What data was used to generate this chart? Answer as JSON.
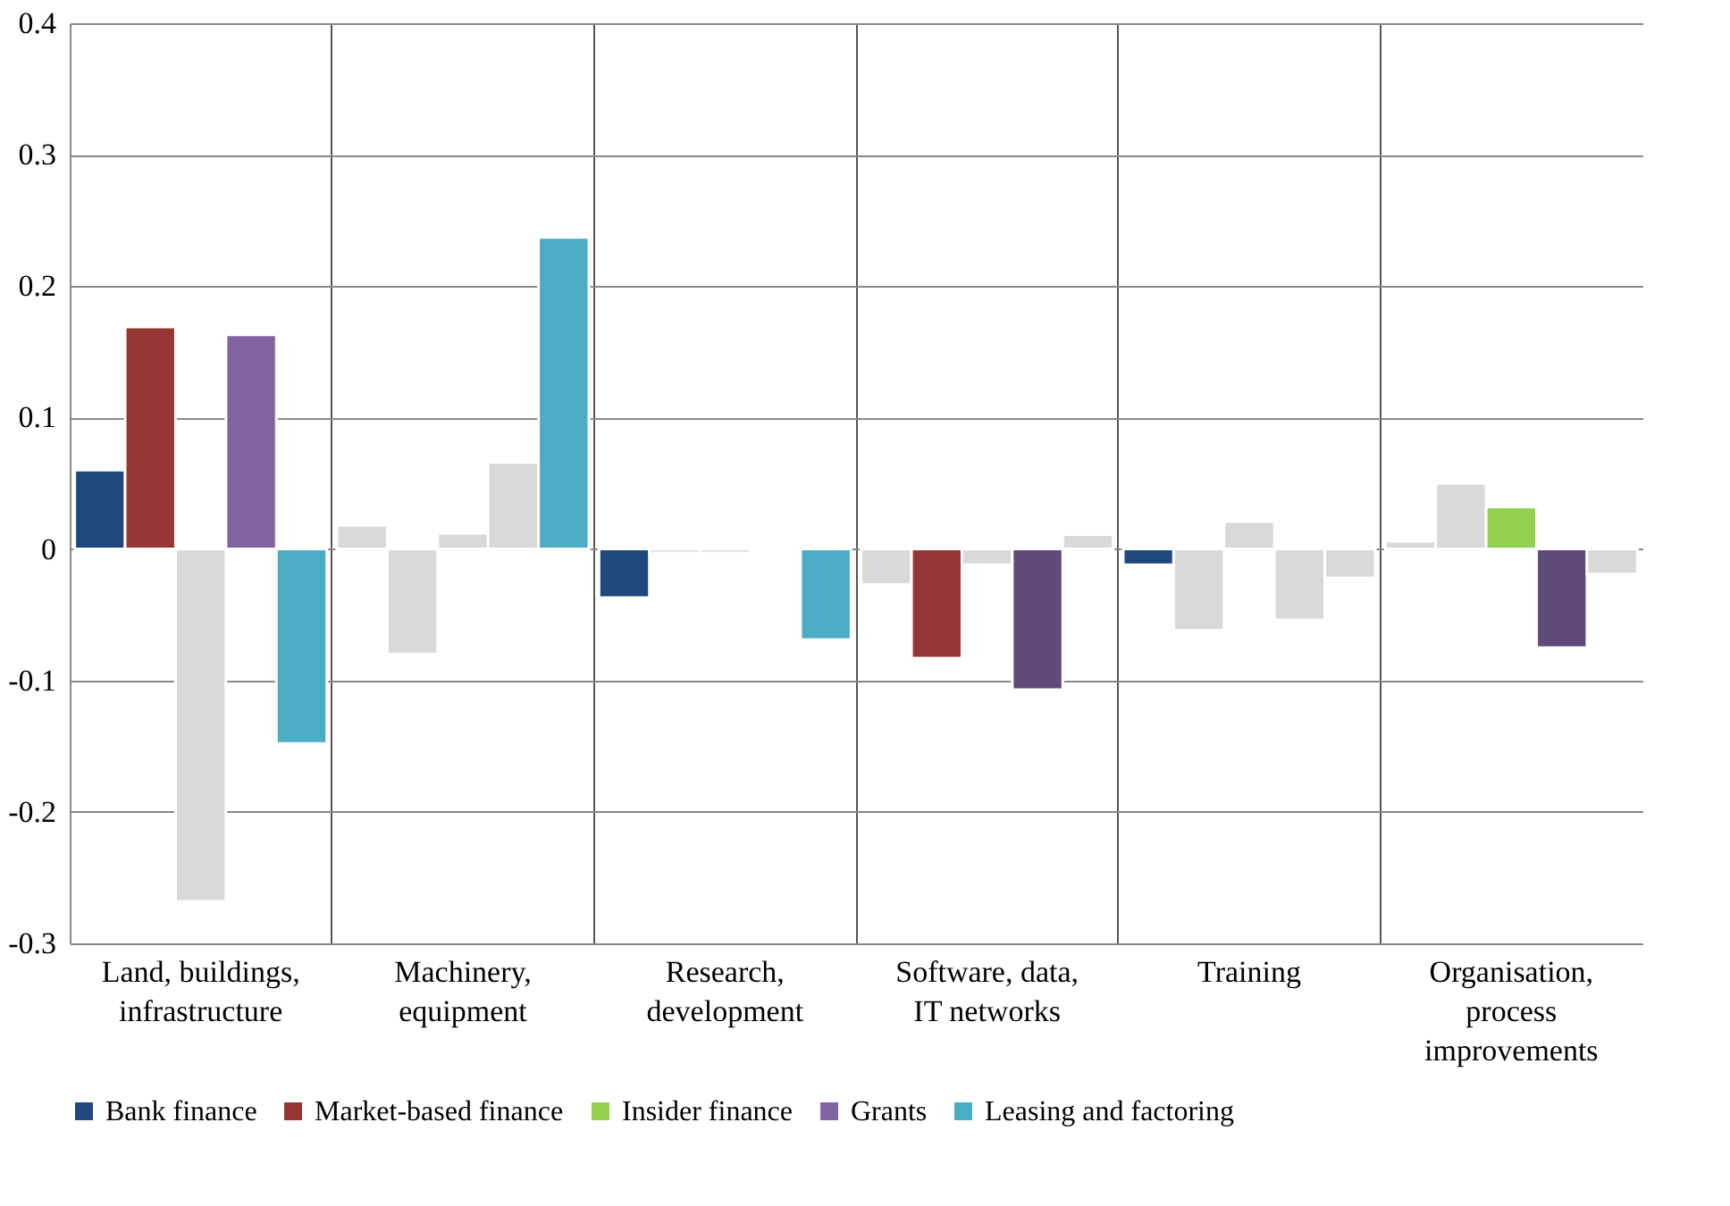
{
  "chart_data": {
    "type": "bar",
    "categories": [
      "Land, buildings,\ninfrastructure",
      "Machinery,\nequipment",
      "Research,\ndevelopment",
      "Software, data,\nIT networks",
      "Training",
      "Organisation,\nprocess\nimprovements"
    ],
    "series": [
      {
        "name": "Bank finance",
        "color": "#1f497d",
        "values": [
          0.06,
          0.018,
          -0.037,
          -0.027,
          -0.012,
          0.006
        ],
        "colors": [
          "#1f497d",
          "#d9d9d9",
          "#1f497d",
          "#d9d9d9",
          "#1f497d",
          "#d9d9d9"
        ]
      },
      {
        "name": "Market-based finance",
        "color": "#943634",
        "values": [
          0.169,
          -0.08,
          -0.003,
          -0.083,
          -0.062,
          0.05
        ],
        "colors": [
          "#943634",
          "#d9d9d9",
          "#d9d9d9",
          "#943634",
          "#d9d9d9",
          "#d9d9d9"
        ]
      },
      {
        "name": "Insider finance",
        "color": "#92d050",
        "values": [
          -0.268,
          0.012,
          -0.003,
          -0.012,
          0.021,
          0.032
        ],
        "colors": [
          "#d9d9d9",
          "#d9d9d9",
          "#d9d9d9",
          "#d9d9d9",
          "#d9d9d9",
          "#92d050"
        ]
      },
      {
        "name": "Grants",
        "color": "#8064a2",
        "values": [
          0.163,
          0.066,
          0.001,
          -0.107,
          -0.054,
          -0.075
        ],
        "colors": [
          "#8064a2",
          "#d9d9d9",
          "#d9d9d9",
          "#604a7b",
          "#d9d9d9",
          "#604a7b"
        ]
      },
      {
        "name": "Leasing and factoring",
        "color": "#4bacc6",
        "values": [
          -0.148,
          0.237,
          -0.069,
          0.011,
          -0.022,
          -0.019
        ],
        "colors": [
          "#4bacc6",
          "#4bacc6",
          "#4bacc6",
          "#d9d9d9",
          "#d9d9d9",
          "#d9d9d9"
        ]
      }
    ],
    "ylim": [
      -0.3,
      0.4
    ],
    "yticks": [
      -0.3,
      -0.2,
      -0.1,
      {
        "value": 0,
        "label": "0"
      },
      0.1,
      0.2,
      0.3,
      0.4
    ],
    "grid": true,
    "legend": "bottom"
  }
}
